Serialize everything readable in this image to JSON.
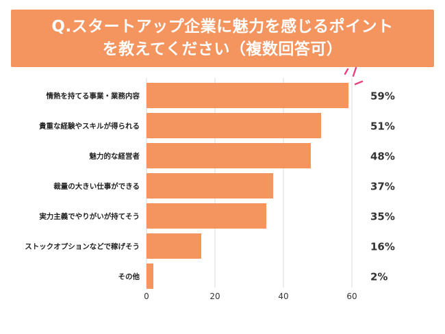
{
  "title": {
    "line1": "Q.スタートアップ企業に魅力を感じるポイント",
    "line2": "を教えてください（複数回答可）"
  },
  "colors": {
    "banner": "#f4945f",
    "bar": "#f4945f",
    "grid": "#d9d9d9",
    "axis_text": "#333333",
    "label_text": "#222222",
    "accent_marks": "#e8407f"
  },
  "chart_data": {
    "type": "bar",
    "orientation": "horizontal",
    "categories": [
      "情熱を持てる事業・業務内容",
      "貴重な経験やスキルが得られる",
      "魅力的な経営者",
      "裁量の大きい仕事ができる",
      "実力主義でやりがいが持てそう",
      "ストックオプションなどで稼げそう",
      "その他"
    ],
    "values": [
      59,
      51,
      48,
      37,
      35,
      16,
      2
    ],
    "value_labels": [
      "59%",
      "51%",
      "48%",
      "37%",
      "35%",
      "16%",
      "2%"
    ],
    "xlim": [
      0,
      60
    ],
    "xticks": [
      0,
      20,
      40,
      60
    ],
    "xtick_labels": [
      "0",
      "20",
      "40",
      "60"
    ],
    "grid": true,
    "unit": "%"
  }
}
